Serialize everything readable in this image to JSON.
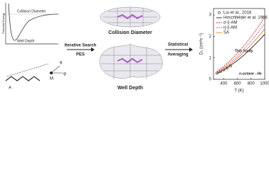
{
  "diagram": {
    "pes_panel": {
      "y_label": "Potential Energy",
      "top_label": "Collision Diameter",
      "bottom_label": "Well Depth"
    },
    "molecule": {
      "label_a": "A",
      "label_m": "M",
      "angle_theta": "θ",
      "angle_phi": "φ"
    },
    "step1": {
      "line1": "Iterative Search",
      "line2": "PES"
    },
    "step2": {
      "line1": "Statistical",
      "line2": "Averaging"
    },
    "shapes": [
      "Collision Diameter",
      "Well Depth"
    ]
  },
  "chart_data": {
    "type": "line",
    "x_label": "T (K)",
    "y_label": "D₀ (cm²s⁻¹)",
    "annotations": [
      "This Study",
      "n-octane - He"
    ],
    "xlim": [
      250,
      1000
    ],
    "xticks": [
      400,
      600,
      800,
      1000
    ],
    "ylim": [
      0,
      3.3
    ],
    "yticks": [
      0,
      1,
      2,
      3
    ],
    "legend": "upper left",
    "series": [
      {
        "name": "Liu et al., 2016",
        "kind": "scatter",
        "color": "#222222",
        "x": [
          300,
          350,
          400,
          450,
          500
        ],
        "values": [
          0.28,
          0.35,
          0.44,
          0.52,
          0.62
        ]
      },
      {
        "name": "Hirschfelder et al. 1966",
        "kind": "line",
        "style": "solid",
        "color": "#222222",
        "x": [
          300,
          400,
          500,
          600,
          700,
          800,
          900,
          1000
        ],
        "values": [
          0.27,
          0.44,
          0.65,
          0.88,
          1.14,
          1.44,
          1.76,
          2.1
        ]
      },
      {
        "name": "σ-ξ-AM",
        "kind": "line",
        "style": "dashed",
        "color": "#d62728",
        "x": [
          300,
          400,
          500,
          600,
          700,
          800,
          900,
          1000
        ],
        "values": [
          0.37,
          0.61,
          0.89,
          1.22,
          1.58,
          1.98,
          2.42,
          2.9
        ]
      },
      {
        "name": "η-ξ-AM",
        "kind": "line",
        "style": "dashed",
        "color": "#9467bd",
        "x": [
          300,
          400,
          500,
          600,
          700,
          800,
          900,
          1000
        ],
        "values": [
          0.34,
          0.55,
          0.8,
          1.09,
          1.42,
          1.78,
          2.17,
          2.6
        ]
      },
      {
        "name": "SA",
        "kind": "line",
        "style": "solid",
        "color": "#ff7f0e",
        "x": [
          300,
          400,
          500,
          600,
          700,
          800,
          900,
          1000
        ],
        "values": [
          0.3,
          0.5,
          0.72,
          0.99,
          1.28,
          1.61,
          1.96,
          2.35
        ]
      }
    ]
  }
}
